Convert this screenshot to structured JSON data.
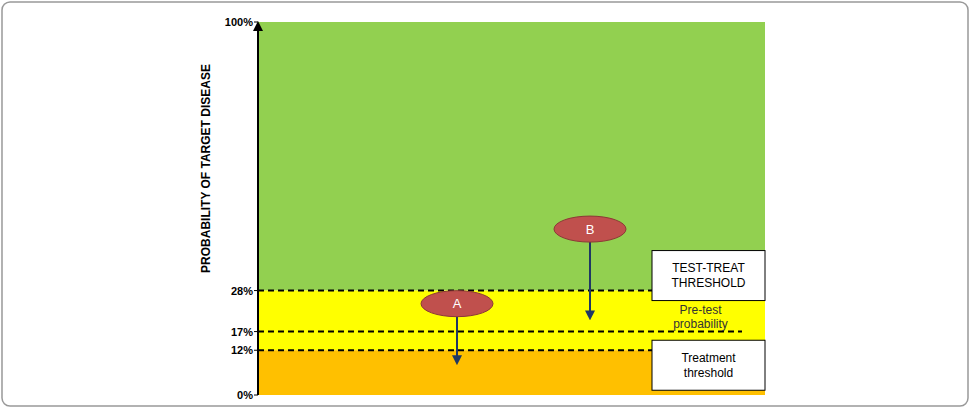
{
  "chart_data": {
    "type": "threshold",
    "ylabel": "PROBABILITY OF TARGET DISEASE",
    "ylim": [
      0,
      100
    ],
    "yticks": [
      {
        "value": 0,
        "label": "0%"
      },
      {
        "value": 12,
        "label": "12%"
      },
      {
        "value": 17,
        "label": "17%"
      },
      {
        "value": 28,
        "label": "28%"
      },
      {
        "value": 100,
        "label": "100%"
      }
    ],
    "bands": [
      {
        "from": 28,
        "to": 100,
        "color": "#92d050"
      },
      {
        "from": 12,
        "to": 28,
        "color": "#ffff00"
      },
      {
        "from": 0,
        "to": 12,
        "color": "#ffc000"
      }
    ],
    "thresholds": [
      {
        "value": 28,
        "label": "TEST-TREAT THRESHOLD"
      },
      {
        "value": 17,
        "label": "Pre-test probability"
      },
      {
        "value": 12,
        "label": "Treatment threshold"
      }
    ],
    "arrows": [
      {
        "label": "A",
        "from": 21,
        "to": 8
      },
      {
        "label": "B",
        "from": 41,
        "to": 20
      }
    ]
  }
}
